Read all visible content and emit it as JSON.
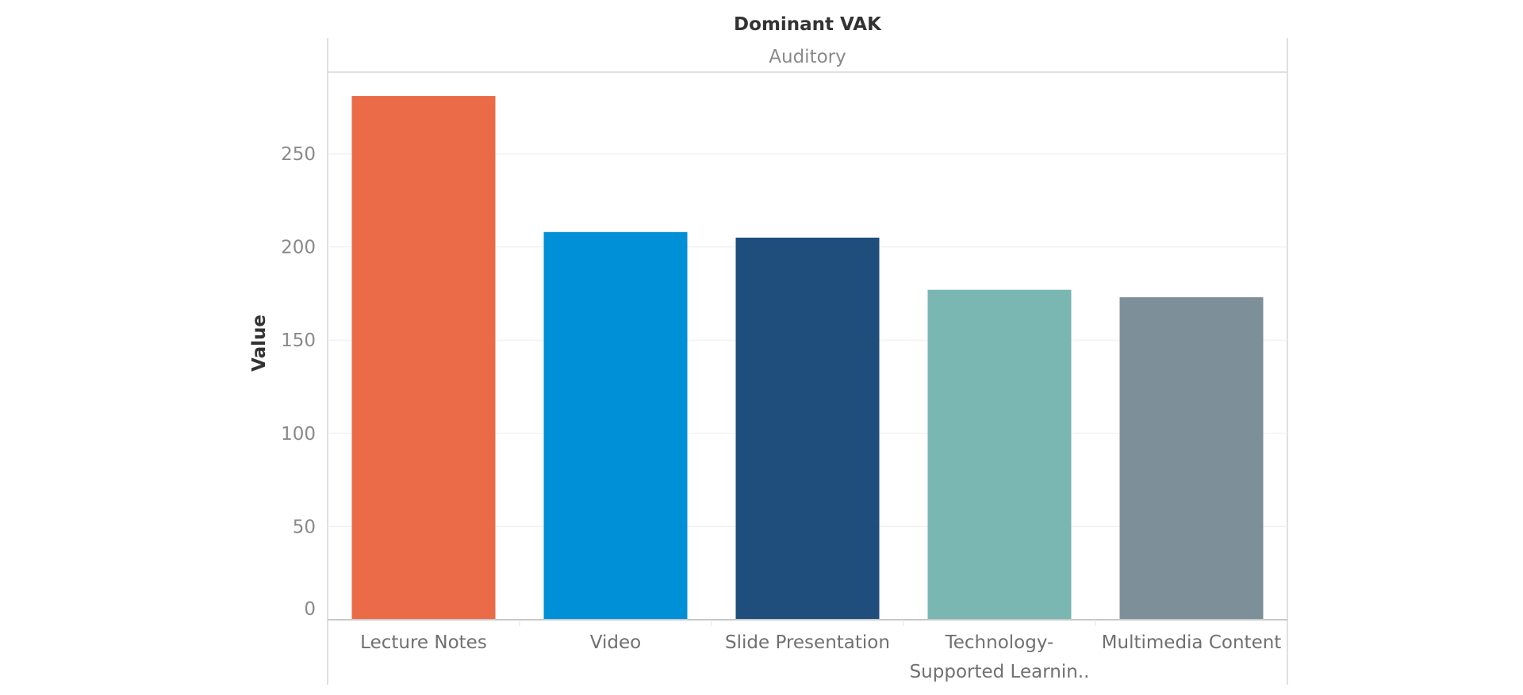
{
  "chart_data": {
    "type": "bar",
    "title": "Dominant VAK",
    "panel_label": "Auditory",
    "ylabel": "Value",
    "xlabel": "",
    "categories": [
      [
        "Lecture Notes"
      ],
      [
        "Video"
      ],
      [
        "Slide Presentation"
      ],
      [
        "Technology-",
        "Supported Learnin.."
      ],
      [
        "Multimedia Content"
      ]
    ],
    "values": [
      281,
      208,
      205,
      177,
      173
    ],
    "colors": [
      "#eb6a48",
      "#0090d7",
      "#1f4e7d",
      "#7ab6b2",
      "#7d8f99"
    ],
    "ylim": [
      0,
      292
    ],
    "yticks": [
      0,
      50,
      100,
      150,
      200,
      250
    ],
    "grid": true,
    "legend": "none"
  }
}
